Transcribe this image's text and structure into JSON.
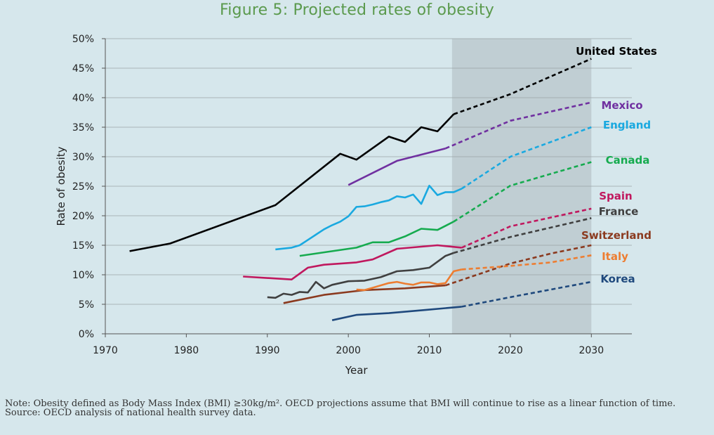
{
  "title": "Figure 5: Projected rates of obesity",
  "notes": {
    "note": "Note: Obesity defined as Body Mass Index (BMI) ≥30kg/m². OECD projections assume that BMI will continue to rise as a linear function of time.",
    "source": "Source: OECD analysis of national health survey data."
  },
  "chart_data": {
    "type": "line",
    "title": "Figure 5: Projected rates of obesity",
    "xlabel": "Year",
    "ylabel": "Rate of obesity",
    "xlim": [
      1970,
      2035
    ],
    "ylim": [
      0,
      50
    ],
    "x_ticks": [
      1970,
      1980,
      1990,
      2000,
      2010,
      2020,
      2030
    ],
    "x_tick_labels": [
      "1970",
      "1980",
      "1990",
      "2000",
      "2010",
      "2020",
      "2030"
    ],
    "y_ticks": [
      0,
      5,
      10,
      15,
      20,
      25,
      30,
      35,
      40,
      45,
      50
    ],
    "y_tick_labels": [
      "0%",
      "5%",
      "10%",
      "15%",
      "20%",
      "25%",
      "30%",
      "35%",
      "40%",
      "45%",
      "50%"
    ],
    "grid": "horizontal",
    "projection_band": [
      2012.8,
      2030
    ],
    "projection_band_color": "#c0ced3",
    "series": [
      {
        "name": "United States",
        "color": "#000000",
        "observed": [
          [
            1973,
            14.0
          ],
          [
            1978,
            15.3
          ],
          [
            1991,
            21.8
          ],
          [
            1999,
            30.5
          ],
          [
            2001,
            29.5
          ],
          [
            2005,
            33.4
          ],
          [
            2007,
            32.5
          ],
          [
            2009,
            35.0
          ],
          [
            2011,
            34.3
          ],
          [
            2013,
            37.2
          ]
        ],
        "projected": [
          [
            2013,
            37.2
          ],
          [
            2020,
            40.6
          ],
          [
            2030,
            46.6
          ]
        ]
      },
      {
        "name": "Mexico",
        "color": "#7030a0",
        "observed": [
          [
            2000,
            25.2
          ],
          [
            2006,
            29.3
          ],
          [
            2012,
            31.4
          ]
        ],
        "projected": [
          [
            2012,
            31.4
          ],
          [
            2020,
            36.1
          ],
          [
            2030,
            39.2
          ]
        ]
      },
      {
        "name": "England",
        "color": "#1aa9e0",
        "observed": [
          [
            1991,
            14.3
          ],
          [
            1993,
            14.6
          ],
          [
            1994,
            15.0
          ],
          [
            1995,
            15.9
          ],
          [
            1996,
            16.8
          ],
          [
            1997,
            17.7
          ],
          [
            1998,
            18.4
          ],
          [
            1999,
            19.0
          ],
          [
            2000,
            19.9
          ],
          [
            2001,
            21.5
          ],
          [
            2002,
            21.6
          ],
          [
            2003,
            21.9
          ],
          [
            2004,
            22.3
          ],
          [
            2005,
            22.6
          ],
          [
            2006,
            23.3
          ],
          [
            2007,
            23.1
          ],
          [
            2008,
            23.6
          ],
          [
            2009,
            22.0
          ],
          [
            2010,
            25.1
          ],
          [
            2011,
            23.5
          ],
          [
            2012,
            24.0
          ],
          [
            2013,
            24.0
          ],
          [
            2014,
            24.6
          ]
        ],
        "projected": [
          [
            2014,
            24.6
          ],
          [
            2020,
            30.0
          ],
          [
            2030,
            35.0
          ]
        ]
      },
      {
        "name": "Canada",
        "color": "#16ab4f",
        "observed": [
          [
            1994,
            13.2
          ],
          [
            2001,
            14.6
          ],
          [
            2003,
            15.5
          ],
          [
            2005,
            15.5
          ],
          [
            2007,
            16.5
          ],
          [
            2009,
            17.8
          ],
          [
            2011,
            17.6
          ],
          [
            2013,
            19.0
          ]
        ],
        "projected": [
          [
            2013,
            19.0
          ],
          [
            2020,
            25.1
          ],
          [
            2030,
            29.1
          ]
        ]
      },
      {
        "name": "Spain",
        "color": "#c0185e",
        "observed": [
          [
            1987,
            9.7
          ],
          [
            1993,
            9.2
          ],
          [
            1995,
            11.2
          ],
          [
            1997,
            11.7
          ],
          [
            2001,
            12.1
          ],
          [
            2003,
            12.6
          ],
          [
            2006,
            14.4
          ],
          [
            2011,
            15.0
          ],
          [
            2014,
            14.6
          ]
        ],
        "projected": [
          [
            2014,
            14.6
          ],
          [
            2020,
            18.2
          ],
          [
            2030,
            21.2
          ]
        ]
      },
      {
        "name": "France",
        "color": "#404040",
        "observed": [
          [
            1990,
            6.2
          ],
          [
            1991,
            6.1
          ],
          [
            1992,
            6.8
          ],
          [
            1993,
            6.6
          ],
          [
            1994,
            7.1
          ],
          [
            1995,
            7.0
          ],
          [
            1996,
            8.8
          ],
          [
            1997,
            7.7
          ],
          [
            1998,
            8.3
          ],
          [
            2000,
            8.9
          ],
          [
            2002,
            9.0
          ],
          [
            2004,
            9.6
          ],
          [
            2006,
            10.6
          ],
          [
            2008,
            10.8
          ],
          [
            2010,
            11.2
          ],
          [
            2012,
            13.2
          ],
          [
            2013,
            13.7
          ]
        ],
        "projected": [
          [
            2013,
            13.7
          ],
          [
            2020,
            16.4
          ],
          [
            2030,
            19.6
          ]
        ]
      },
      {
        "name": "Switzerland",
        "color": "#8b3a1f",
        "observed": [
          [
            1992,
            5.2
          ],
          [
            1997,
            6.6
          ],
          [
            2002,
            7.4
          ],
          [
            2007,
            7.7
          ],
          [
            2012,
            8.2
          ]
        ],
        "projected": [
          [
            2012,
            8.2
          ],
          [
            2020,
            11.9
          ],
          [
            2025,
            13.6
          ],
          [
            2030,
            15.0
          ]
        ]
      },
      {
        "name": "Italy",
        "color": "#ed7d31",
        "observed": [
          [
            2001,
            7.5
          ],
          [
            2002,
            7.4
          ],
          [
            2003,
            7.8
          ],
          [
            2004,
            8.2
          ],
          [
            2005,
            8.6
          ],
          [
            2006,
            8.8
          ],
          [
            2007,
            8.5
          ],
          [
            2008,
            8.3
          ],
          [
            2009,
            8.7
          ],
          [
            2010,
            8.7
          ],
          [
            2011,
            8.4
          ],
          [
            2012,
            8.6
          ],
          [
            2013,
            10.6
          ],
          [
            2014,
            10.9
          ]
        ],
        "projected": [
          [
            2014,
            10.9
          ],
          [
            2020,
            11.5
          ],
          [
            2025,
            12.1
          ],
          [
            2030,
            13.3
          ]
        ]
      },
      {
        "name": "Korea",
        "color": "#1f497d",
        "observed": [
          [
            1998,
            2.3
          ],
          [
            2001,
            3.2
          ],
          [
            2005,
            3.5
          ],
          [
            2010,
            4.1
          ],
          [
            2014,
            4.6
          ]
        ],
        "projected": [
          [
            2014,
            4.6
          ],
          [
            2020,
            6.2
          ],
          [
            2030,
            8.8
          ]
        ]
      }
    ]
  }
}
